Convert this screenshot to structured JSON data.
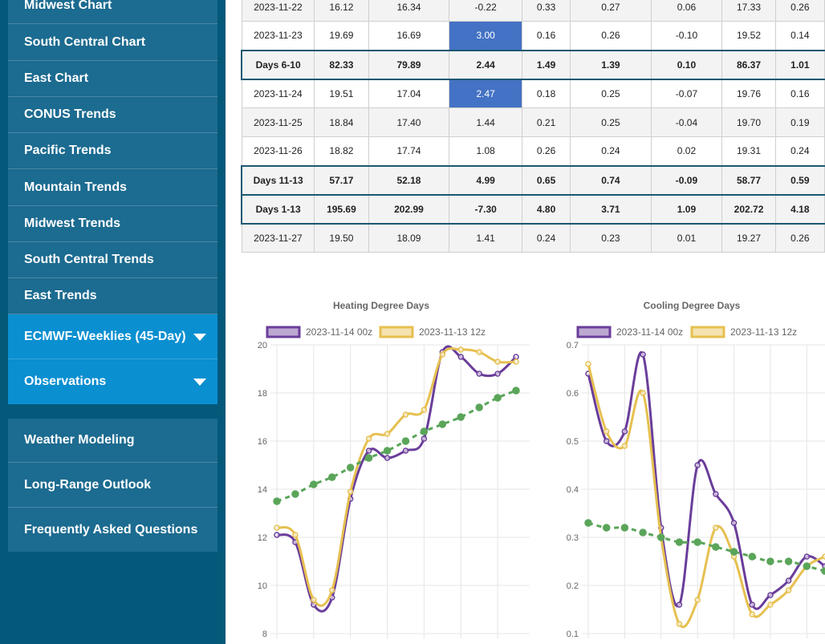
{
  "sidebar": {
    "items": [
      {
        "label": "Midwest Chart"
      },
      {
        "label": "South Central Chart"
      },
      {
        "label": "East Chart"
      },
      {
        "label": "CONUS Trends"
      },
      {
        "label": "Pacific Trends"
      },
      {
        "label": "Mountain Trends"
      },
      {
        "label": "Midwest Trends"
      },
      {
        "label": "South Central Trends"
      },
      {
        "label": "East Trends"
      },
      {
        "label": "ECMWF-Weeklies (45-Day)"
      },
      {
        "label": "Observations"
      }
    ],
    "bottom_items": [
      {
        "label": "Weather Modeling"
      },
      {
        "label": "Long-Range Outlook"
      },
      {
        "label": "Frequently Asked Questions"
      }
    ]
  },
  "table": {
    "rows": [
      {
        "type": "day",
        "cells": [
          "2023-11-22",
          "16.12",
          "16.34",
          "-0.22",
          "0.33",
          "0.27",
          "0.06",
          "17.33",
          "0.26"
        ]
      },
      {
        "type": "day",
        "cells": [
          "2023-11-23",
          "19.69",
          "16.69",
          "3.00",
          "0.16",
          "0.26",
          "-0.10",
          "19.52",
          "0.14"
        ]
      },
      {
        "type": "sum",
        "cells": [
          "Days 6-10",
          "82.33",
          "79.89",
          "2.44",
          "1.49",
          "1.39",
          "0.10",
          "86.37",
          "1.01"
        ]
      },
      {
        "type": "day",
        "cells": [
          "2023-11-24",
          "19.51",
          "17.04",
          "2.47",
          "0.18",
          "0.25",
          "-0.07",
          "19.76",
          "0.16"
        ]
      },
      {
        "type": "day",
        "cells": [
          "2023-11-25",
          "18.84",
          "17.40",
          "1.44",
          "0.21",
          "0.25",
          "-0.04",
          "19.70",
          "0.19"
        ]
      },
      {
        "type": "day",
        "cells": [
          "2023-11-26",
          "18.82",
          "17.74",
          "1.08",
          "0.26",
          "0.24",
          "0.02",
          "19.31",
          "0.24"
        ]
      },
      {
        "type": "sum",
        "cells": [
          "Days 11-13",
          "57.17",
          "52.18",
          "4.99",
          "0.65",
          "0.74",
          "-0.09",
          "58.77",
          "0.59"
        ]
      },
      {
        "type": "sum",
        "cells": [
          "Days 1-13",
          "195.69",
          "202.99",
          "-7.30",
          "4.80",
          "3.71",
          "1.09",
          "202.72",
          "4.18"
        ]
      },
      {
        "type": "day",
        "cells": [
          "2023-11-27",
          "19.50",
          "18.09",
          "1.41",
          "0.24",
          "0.23",
          "0.01",
          "19.27",
          "0.26"
        ]
      }
    ]
  },
  "chart_data": [
    {
      "type": "line",
      "title": "Heating Degree Days",
      "ylim": [
        8,
        20
      ],
      "yticks": [
        "8",
        "10",
        "12",
        "14",
        "16",
        "18",
        "20"
      ],
      "grid": true,
      "legend": "top",
      "series": [
        {
          "name": "2023-11-14 00z",
          "color": "#6a3d9a",
          "values": [
            12.1,
            11.8,
            9.2,
            9.5,
            13.6,
            15.6,
            15.3,
            15.6,
            16.1,
            19.7,
            19.5,
            18.8,
            18.8,
            19.5
          ]
        },
        {
          "name": "2023-11-13 12z",
          "color": "#e6c050",
          "values": [
            12.4,
            12.1,
            9.4,
            9.8,
            13.9,
            16.1,
            16.3,
            17.1,
            17.3,
            19.6,
            19.8,
            19.7,
            19.3,
            19.3
          ]
        },
        {
          "name": "",
          "color": "#5aa55a",
          "dashed": true,
          "values": [
            13.5,
            13.8,
            14.2,
            14.5,
            14.9,
            15.3,
            15.6,
            16.0,
            16.4,
            16.7,
            17.0,
            17.4,
            17.8,
            18.1
          ]
        }
      ]
    },
    {
      "type": "line",
      "title": "Cooling Degree Days",
      "ylim": [
        0.1,
        0.7
      ],
      "yticks": [
        "0.1",
        "0.2",
        "0.3",
        "0.4",
        "0.5",
        "0.6",
        "0.7"
      ],
      "grid": true,
      "legend": "top",
      "series": [
        {
          "name": "2023-11-14 00z",
          "color": "#6a3d9a",
          "values": [
            0.64,
            0.5,
            0.52,
            0.68,
            0.32,
            0.16,
            0.45,
            0.39,
            0.33,
            0.16,
            0.18,
            0.21,
            0.26,
            0.24
          ]
        },
        {
          "name": "2023-11-13 12z",
          "color": "#e6c050",
          "values": [
            0.66,
            0.52,
            0.49,
            0.6,
            0.3,
            0.12,
            0.17,
            0.32,
            0.26,
            0.14,
            0.16,
            0.19,
            0.24,
            0.26
          ]
        },
        {
          "name": "",
          "color": "#5aa55a",
          "dashed": true,
          "values": [
            0.33,
            0.32,
            0.32,
            0.31,
            0.3,
            0.29,
            0.29,
            0.28,
            0.27,
            0.26,
            0.25,
            0.25,
            0.24,
            0.23
          ]
        }
      ]
    }
  ]
}
